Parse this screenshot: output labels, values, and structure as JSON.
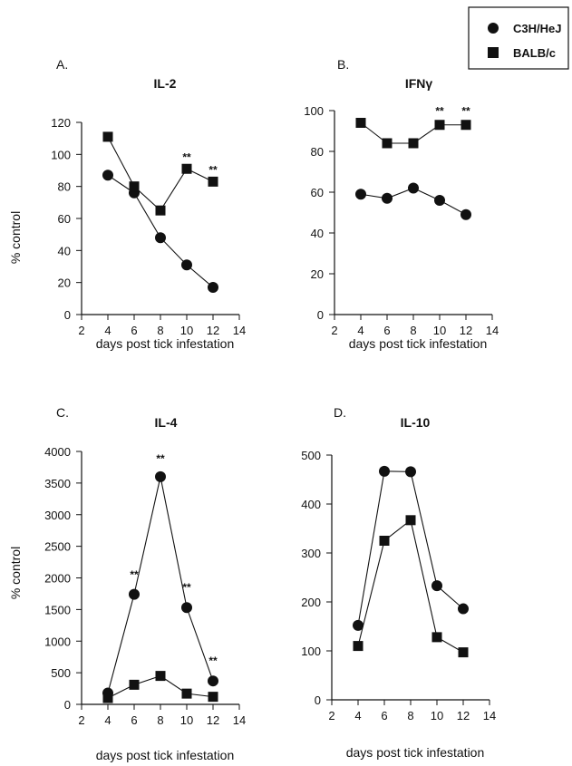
{
  "legend": {
    "placement": "top-right",
    "entries": [
      {
        "name": "C3H/HeJ",
        "marker": "circle"
      },
      {
        "name": "BALB/c",
        "marker": "square"
      }
    ]
  },
  "colors": {
    "ink": "#111111",
    "background": "#ffffff"
  },
  "chart_data": [
    {
      "type": "line",
      "letter": "A.",
      "title": "IL-2",
      "xlabel": "days post tick infestation",
      "ylabel": "% control",
      "xlim": [
        2,
        14
      ],
      "xticks": [
        2,
        4,
        6,
        8,
        10,
        12,
        14
      ],
      "ylim": [
        0,
        120
      ],
      "yticks": [
        0,
        20,
        40,
        60,
        80,
        100,
        120
      ],
      "grid": false,
      "x": [
        4,
        6,
        8,
        10,
        12
      ],
      "series": [
        {
          "name": "C3H/HeJ",
          "marker": "circle",
          "values": [
            87,
            76,
            48,
            31,
            17
          ]
        },
        {
          "name": "BALB/c",
          "marker": "square",
          "values": [
            111,
            80,
            65,
            91,
            83
          ]
        }
      ],
      "annotations": [
        {
          "text": "**",
          "x": 10,
          "y": 96
        },
        {
          "text": "**",
          "x": 12,
          "y": 88
        }
      ]
    },
    {
      "type": "line",
      "letter": "B.",
      "title": "IFNγ",
      "xlabel": "days post tick infestation",
      "ylabel": "",
      "xlim": [
        2,
        14
      ],
      "xticks": [
        2,
        4,
        6,
        8,
        10,
        12,
        14
      ],
      "ylim": [
        0,
        100
      ],
      "yticks": [
        0,
        20,
        40,
        60,
        80,
        100
      ],
      "grid": false,
      "x": [
        4,
        6,
        8,
        10,
        12
      ],
      "series": [
        {
          "name": "C3H/HeJ",
          "marker": "circle",
          "values": [
            59,
            57,
            62,
            56,
            49
          ]
        },
        {
          "name": "BALB/c",
          "marker": "square",
          "values": [
            94,
            84,
            84,
            93,
            93
          ]
        }
      ],
      "annotations": [
        {
          "text": "**",
          "x": 10,
          "y": 98
        },
        {
          "text": "**",
          "x": 12,
          "y": 98
        }
      ]
    },
    {
      "type": "line",
      "letter": "C.",
      "title": "IL-4",
      "xlabel": "days post tick infestation",
      "ylabel": "% control",
      "xlim": [
        2,
        14
      ],
      "xticks": [
        2,
        4,
        6,
        8,
        10,
        12,
        14
      ],
      "ylim": [
        0,
        4000
      ],
      "yticks": [
        0,
        500,
        1000,
        1500,
        2000,
        2500,
        3000,
        3500,
        4000
      ],
      "grid": false,
      "x": [
        4,
        6,
        8,
        10,
        12
      ],
      "series": [
        {
          "name": "C3H/HeJ",
          "marker": "circle",
          "values": [
            180,
            1740,
            3600,
            1530,
            370
          ]
        },
        {
          "name": "BALB/c",
          "marker": "square",
          "values": [
            100,
            310,
            450,
            170,
            120
          ]
        }
      ],
      "annotations": [
        {
          "text": "**",
          "x": 6,
          "y": 1990
        },
        {
          "text": "**",
          "x": 8,
          "y": 3830
        },
        {
          "text": "**",
          "x": 10,
          "y": 1790
        },
        {
          "text": "**",
          "x": 12,
          "y": 630
        }
      ]
    },
    {
      "type": "line",
      "letter": "D.",
      "title": "IL-10",
      "xlabel": "days post tick infestation",
      "ylabel": "",
      "xlim": [
        2,
        14
      ],
      "xticks": [
        2,
        4,
        6,
        8,
        10,
        12,
        14
      ],
      "ylim": [
        0,
        500
      ],
      "yticks": [
        0,
        100,
        200,
        300,
        400,
        500
      ],
      "grid": false,
      "x": [
        4,
        6,
        8,
        10,
        12
      ],
      "series": [
        {
          "name": "C3H/HeJ",
          "marker": "circle",
          "values": [
            152,
            467,
            466,
            233,
            186
          ]
        },
        {
          "name": "BALB/c",
          "marker": "square",
          "values": [
            110,
            325,
            367,
            128,
            97
          ]
        }
      ],
      "annotations": []
    }
  ]
}
